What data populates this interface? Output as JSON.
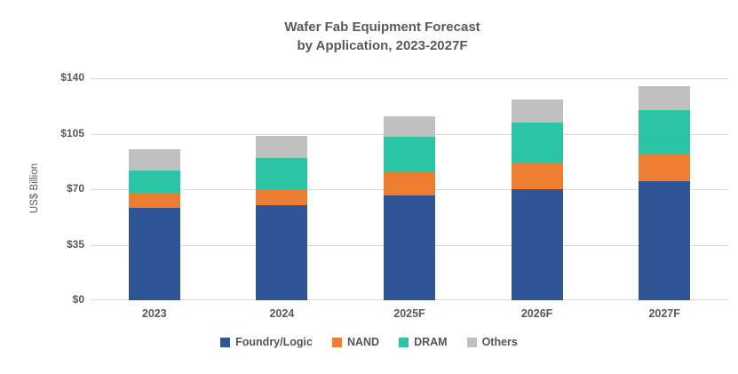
{
  "title": {
    "line1": "Wafer Fab Equipment Forecast",
    "line2": "by Application, 2023-2027F"
  },
  "chart_data": {
    "type": "bar",
    "stacked": true,
    "title": "Wafer Fab Equipment Forecast by Application, 2023-2027F",
    "xlabel": "",
    "ylabel": "US$ Billion",
    "categories": [
      "2023",
      "2024",
      "2025F",
      "2026F",
      "2027F"
    ],
    "series": [
      {
        "name": "Foundry/Logic",
        "color": "#2F5597",
        "values": [
          58,
          60,
          66,
          70,
          75
        ]
      },
      {
        "name": "NAND",
        "color": "#ED7D31",
        "values": [
          10,
          9.5,
          15,
          16,
          17
        ]
      },
      {
        "name": "DRAM",
        "color": "#2BC5A5",
        "values": [
          14,
          20,
          22,
          26,
          28
        ]
      },
      {
        "name": "Others",
        "color": "#BFBFBF",
        "values": [
          13,
          14,
          13,
          14.5,
          15
        ]
      }
    ],
    "totals": [
      95,
      103.5,
      116,
      126.5,
      135
    ],
    "ylim": [
      0,
      140
    ],
    "yticks": [
      "$0",
      "$35",
      "$70",
      "$105",
      "$140"
    ],
    "ytick_values": [
      0,
      35,
      70,
      105,
      140
    ],
    "grid": true,
    "gridline_color": "#D9D9D9",
    "legend_position": "bottom"
  }
}
